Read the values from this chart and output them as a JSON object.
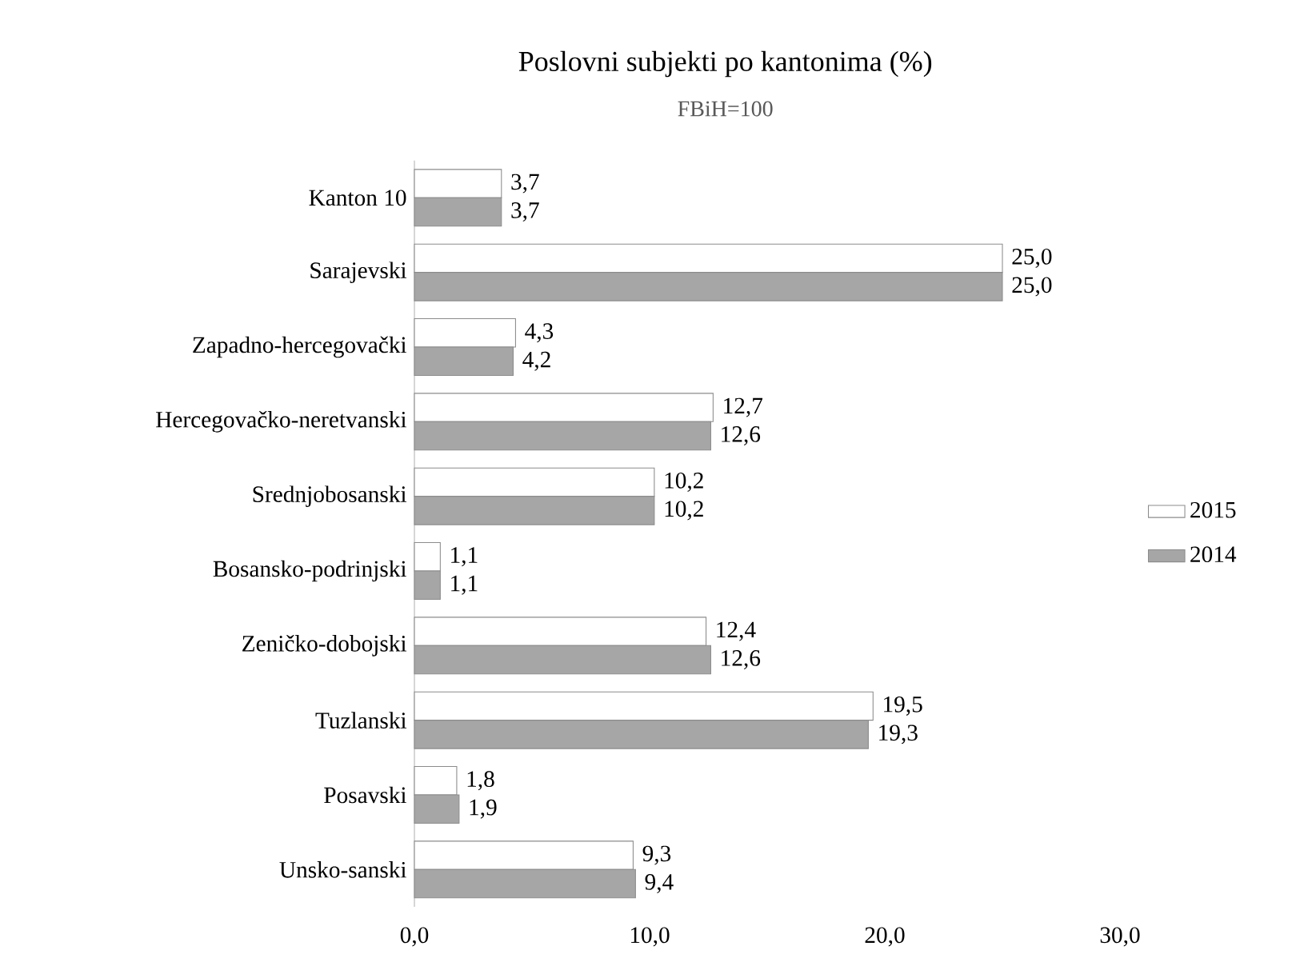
{
  "chart_data": {
    "type": "bar",
    "orientation": "horizontal",
    "title": "Poslovni subjekti po kantonima (%)",
    "subtitle": "FBiH=100",
    "categories": [
      "Kanton 10",
      "Sarajevski",
      "Zapadno-hercegovački",
      "Hercegovačko-neretvanski",
      "Srednjobosanski",
      "Bosansko-podrinjski",
      "Zeničko-dobojski",
      "Tuzlanski",
      "Posavski",
      "Unsko-sanski"
    ],
    "series": [
      {
        "name": "2015",
        "color": "#ffffff",
        "values": [
          3.7,
          25.0,
          4.3,
          12.7,
          10.2,
          1.1,
          12.4,
          19.5,
          1.8,
          9.3
        ],
        "value_labels": [
          "3,7",
          "25,0",
          "4,3",
          "12,7",
          "10,2",
          "1,1",
          "12,4",
          "19,5",
          "1,8",
          "9,3"
        ]
      },
      {
        "name": "2014",
        "color": "#a6a6a6",
        "values": [
          3.7,
          25.0,
          4.2,
          12.6,
          10.2,
          1.1,
          12.6,
          19.3,
          1.9,
          9.4
        ],
        "value_labels": [
          "3,7",
          "25,0",
          "4,2",
          "12,6",
          "10,2",
          "1,1",
          "12,6",
          "19,3",
          "1,9",
          "9,4"
        ]
      }
    ],
    "xlim": [
      0,
      30
    ],
    "xticks": [
      {
        "value": 0,
        "label": "0,0"
      },
      {
        "value": 10,
        "label": "10,0"
      },
      {
        "value": 20,
        "label": "20,0"
      },
      {
        "value": 30,
        "label": "30,0"
      }
    ],
    "legend": "right",
    "grid": false
  }
}
